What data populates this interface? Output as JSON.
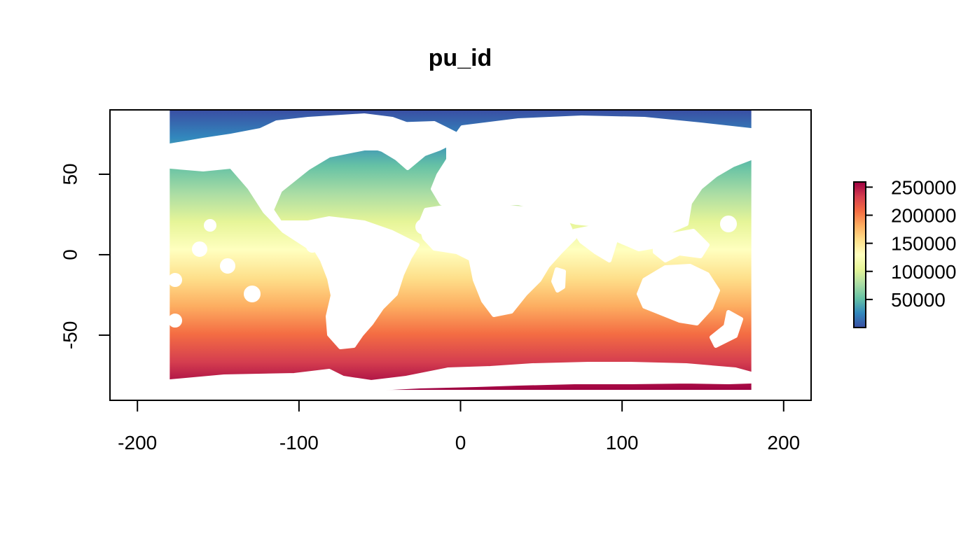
{
  "chart_data": {
    "type": "heatmap",
    "title": "pu_id",
    "xlabel": "",
    "ylabel": "",
    "x_ticks": [
      -200,
      -100,
      0,
      100,
      200
    ],
    "x_tick_labels": [
      "-200",
      "-100",
      "0",
      "100",
      "200"
    ],
    "y_ticks": [
      -50,
      0,
      50
    ],
    "y_tick_labels": [
      "-50",
      "0",
      "50"
    ],
    "xlim": [
      -217,
      217
    ],
    "ylim": [
      -90.5,
      90
    ],
    "raster_extent": {
      "xmin": -180,
      "xmax": 180,
      "ymin": -84,
      "ymax": 90
    },
    "value_range": [
      1,
      259200
    ],
    "legend": {
      "ticks": [
        50000,
        100000,
        150000,
        200000,
        250000
      ],
      "tick_labels": [
        "50000",
        "100000",
        "150000",
        "200000",
        "250000"
      ],
      "placement": "right"
    },
    "colors": {
      "palette": [
        "#3a4ea3",
        "#3288bd",
        "#66c2a5",
        "#abdda4",
        "#e6f598",
        "#ffffbf",
        "#fee08b",
        "#fdae61",
        "#f46d43",
        "#d53e4f",
        "#9e0142"
      ],
      "land": "#ffffff"
    },
    "grid": false
  }
}
